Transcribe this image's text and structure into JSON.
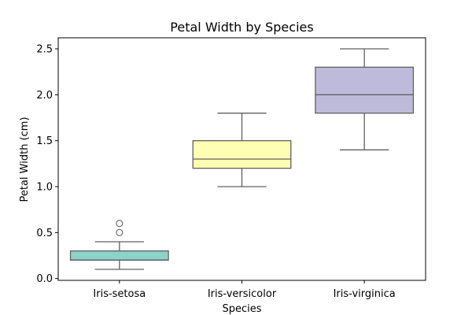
{
  "chart_data": {
    "type": "box",
    "title": "Petal Width by Species",
    "xlabel": "Species",
    "ylabel": "Petal Width (cm)",
    "ylim": [
      -0.02,
      2.62
    ],
    "yticks": [
      "0.0",
      "0.5",
      "1.0",
      "1.5",
      "2.0",
      "2.5"
    ],
    "grid": false,
    "categories": [
      "Iris-setosa",
      "Iris-versicolor",
      "Iris-virginica"
    ],
    "boxes": [
      {
        "category": "Iris-setosa",
        "whisker_low": 0.1,
        "q1": 0.2,
        "median": 0.2,
        "q3": 0.3,
        "whisker_high": 0.4,
        "outliers": [
          0.5,
          0.6
        ],
        "color": "#8dd3c7"
      },
      {
        "category": "Iris-versicolor",
        "whisker_low": 1.0,
        "q1": 1.2,
        "median": 1.3,
        "q3": 1.5,
        "whisker_high": 1.8,
        "outliers": [],
        "color": "#ffffb3"
      },
      {
        "category": "Iris-virginica",
        "whisker_low": 1.4,
        "q1": 1.8,
        "median": 2.0,
        "q3": 2.3,
        "whisker_high": 2.5,
        "outliers": [],
        "color": "#bebada"
      }
    ]
  }
}
